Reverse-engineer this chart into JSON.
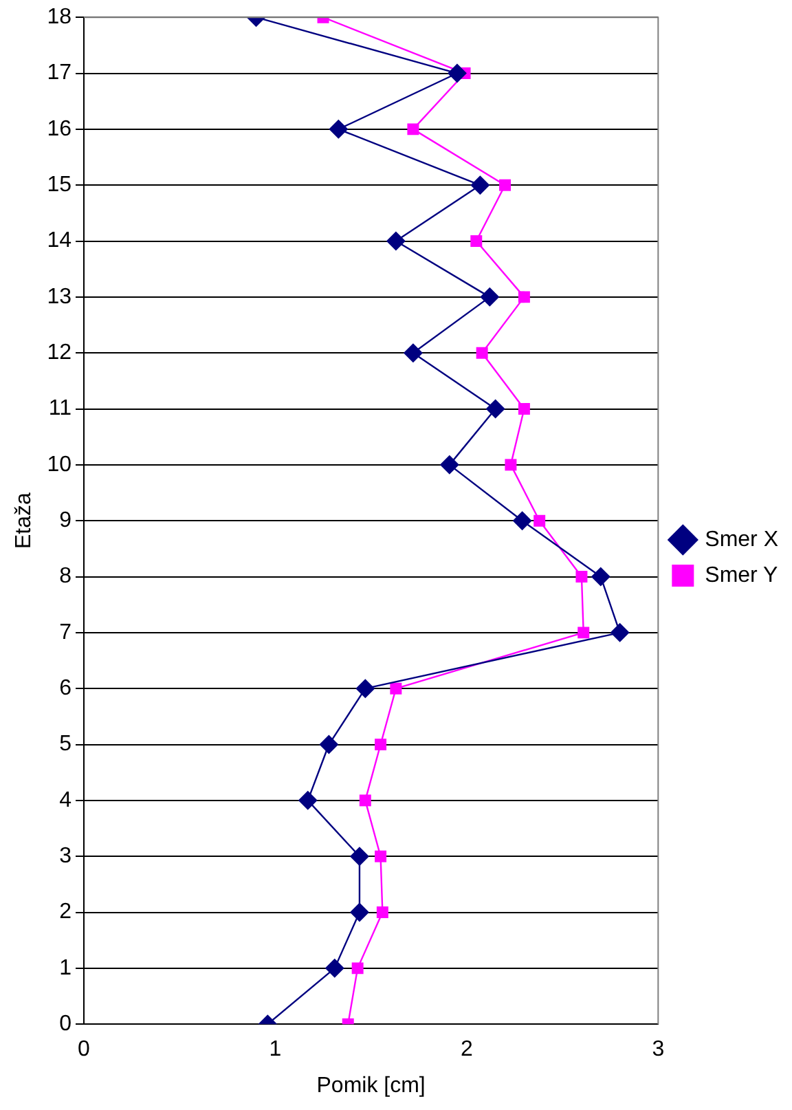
{
  "chart_data": {
    "type": "line",
    "xlabel": "Pomik [cm]",
    "ylabel": "Etaža",
    "xlim": [
      0,
      3
    ],
    "xticks": [
      0,
      1,
      2,
      3
    ],
    "ylim": [
      0,
      18
    ],
    "yticks": [
      0,
      1,
      2,
      3,
      4,
      5,
      6,
      7,
      8,
      9,
      10,
      11,
      12,
      13,
      14,
      15,
      16,
      17,
      18
    ],
    "grid": "y",
    "legend": "right",
    "line_style": "solid",
    "series": [
      {
        "name": "Smer X",
        "color": "#000080",
        "marker": "diamond",
        "x": [
          0.96,
          1.31,
          1.44,
          1.44,
          1.17,
          1.28,
          1.47,
          2.8,
          2.7,
          2.29,
          1.91,
          2.15,
          1.72,
          2.12,
          1.63,
          2.07,
          1.33,
          1.95,
          0.9
        ],
        "values": [
          0,
          1,
          2,
          3,
          4,
          5,
          6,
          7,
          8,
          9,
          10,
          11,
          12,
          13,
          14,
          15,
          16,
          17,
          18
        ]
      },
      {
        "name": "Smer Y",
        "color": "#ff00ff",
        "marker": "square",
        "x": [
          1.38,
          1.43,
          1.56,
          1.55,
          1.47,
          1.55,
          1.63,
          2.61,
          2.6,
          2.38,
          2.23,
          2.3,
          2.08,
          2.3,
          2.05,
          2.2,
          1.72,
          1.99,
          1.25
        ],
        "values": [
          0,
          1,
          2,
          3,
          4,
          5,
          6,
          7,
          8,
          9,
          10,
          11,
          12,
          13,
          14,
          15,
          16,
          17,
          18
        ]
      }
    ]
  }
}
